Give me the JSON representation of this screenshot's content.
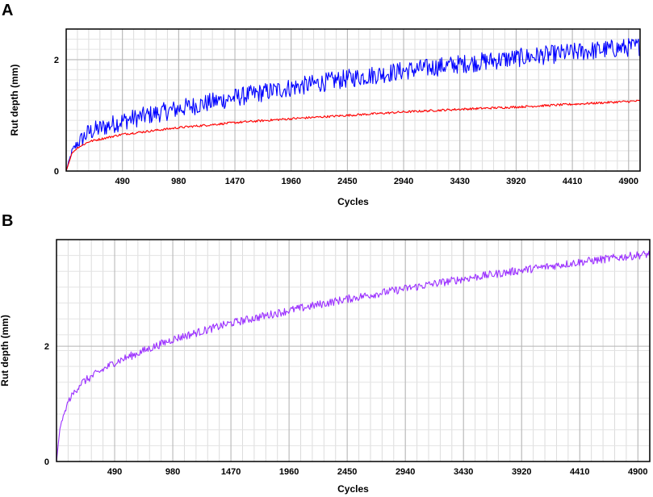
{
  "panels": [
    {
      "letter": "A"
    },
    {
      "letter": "B"
    }
  ],
  "chart_data": [
    {
      "type": "line",
      "title": "",
      "xlabel": "Cycles",
      "ylabel": "Rut depth (mm)",
      "xlim": [
        0,
        5000
      ],
      "ylim": [
        0,
        2.55
      ],
      "xticks": [
        490,
        980,
        1470,
        1960,
        2450,
        2940,
        3430,
        3920,
        4410,
        4900
      ],
      "xtick_labels": [
        "490",
        "980",
        "1470",
        "1960",
        "2450",
        "2940",
        "3430",
        "3920",
        "4410",
        "4900"
      ],
      "yticks": [
        0,
        2
      ],
      "ytick_labels": [
        "0",
        "2"
      ],
      "grid": true,
      "colors": [
        "#0000ff",
        "#ff0000"
      ],
      "series": [
        {
          "color": "#0000ff",
          "x": [
            0,
            50,
            100,
            200,
            490,
            980,
            1470,
            1960,
            2450,
            2940,
            3430,
            3920,
            4410,
            4900,
            5000
          ],
          "values": [
            0,
            0.35,
            0.5,
            0.7,
            0.9,
            1.12,
            1.32,
            1.5,
            1.66,
            1.8,
            1.92,
            2.03,
            2.13,
            2.22,
            2.24
          ],
          "noise": 0.17
        },
        {
          "color": "#ff0000",
          "x": [
            0,
            50,
            100,
            200,
            490,
            980,
            1470,
            1960,
            2450,
            2940,
            3430,
            3920,
            4410,
            4900,
            5000
          ],
          "values": [
            0,
            0.32,
            0.42,
            0.53,
            0.66,
            0.78,
            0.87,
            0.94,
            1.0,
            1.06,
            1.11,
            1.15,
            1.2,
            1.25,
            1.26
          ],
          "noise": 0.02
        }
      ]
    },
    {
      "type": "line",
      "title": "",
      "xlabel": "Cycles",
      "ylabel": "Rut depth (mm)",
      "xlim": [
        0,
        5000
      ],
      "ylim": [
        0,
        3.85
      ],
      "xticks": [
        490,
        980,
        1470,
        1960,
        2450,
        2940,
        3430,
        3920,
        4410,
        4900
      ],
      "xtick_labels": [
        "490",
        "980",
        "1470",
        "1960",
        "2450",
        "2940",
        "3430",
        "3920",
        "4410",
        "4900"
      ],
      "yticks": [
        0,
        2
      ],
      "ytick_labels": [
        "0",
        "2"
      ],
      "grid": true,
      "colors": [
        "#9b30ff"
      ],
      "series": [
        {
          "color": "#9b30ff",
          "x": [
            0,
            30,
            100,
            200,
            490,
            980,
            1470,
            1960,
            2450,
            2940,
            3430,
            3920,
            4410,
            4900,
            5000
          ],
          "values": [
            0,
            0.6,
            1.05,
            1.35,
            1.72,
            2.12,
            2.4,
            2.62,
            2.82,
            3.0,
            3.17,
            3.32,
            3.46,
            3.58,
            3.6
          ],
          "noise": 0.07
        }
      ]
    }
  ]
}
